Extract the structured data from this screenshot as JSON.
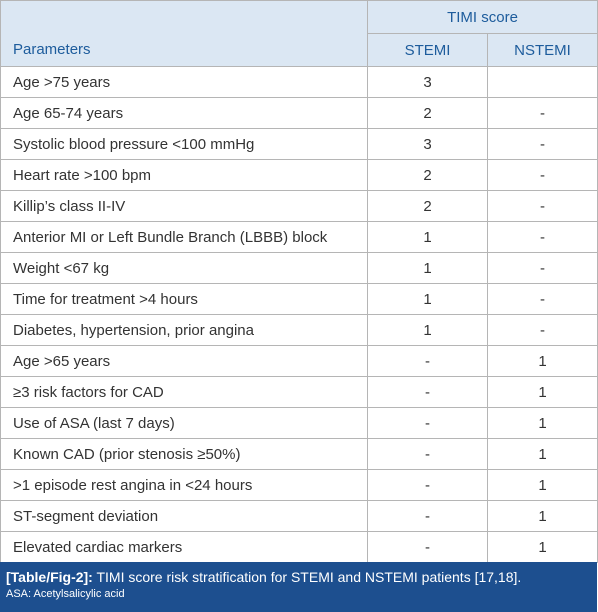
{
  "header": {
    "group": "TIMI score",
    "columns": [
      "Parameters",
      "STEMI",
      "NSTEMI"
    ]
  },
  "rows": [
    [
      "Age >75 years",
      "3",
      null
    ],
    [
      "Age 65-74 years",
      "2",
      "-"
    ],
    [
      "Systolic blood pressure <100 mmHg",
      "3",
      "-"
    ],
    [
      "Heart rate >100 bpm",
      "2",
      "-"
    ],
    [
      "Killip’s class II-IV",
      "2",
      "-"
    ],
    [
      "Anterior MI or Left Bundle Branch (LBBB) block",
      "1",
      "-"
    ],
    [
      "Weight <67 kg",
      "1",
      "-"
    ],
    [
      "Time for treatment >4 hours",
      "1",
      "-"
    ],
    [
      "Diabetes, hypertension, prior angina",
      "1",
      "-"
    ],
    [
      "Age >65 years",
      "-",
      "1"
    ],
    [
      "≥3 risk factors for CAD",
      "-",
      "1"
    ],
    [
      "Use of ASA (last 7 days)",
      "-",
      "1"
    ],
    [
      "Known CAD (prior stenosis ≥50%)",
      "-",
      "1"
    ],
    [
      ">1 episode rest angina in <24 hours",
      "-",
      "1"
    ],
    [
      "ST-segment deviation",
      "-",
      "1"
    ],
    [
      "Elevated cardiac markers",
      "-",
      "1"
    ]
  ],
  "caption": {
    "label": "[Table/Fig-2]:",
    "text": " TIMI score risk stratification for STEMI and NSTEMI patients [17,18].",
    "note": "ASA: Acetylsalicylic acid"
  }
}
